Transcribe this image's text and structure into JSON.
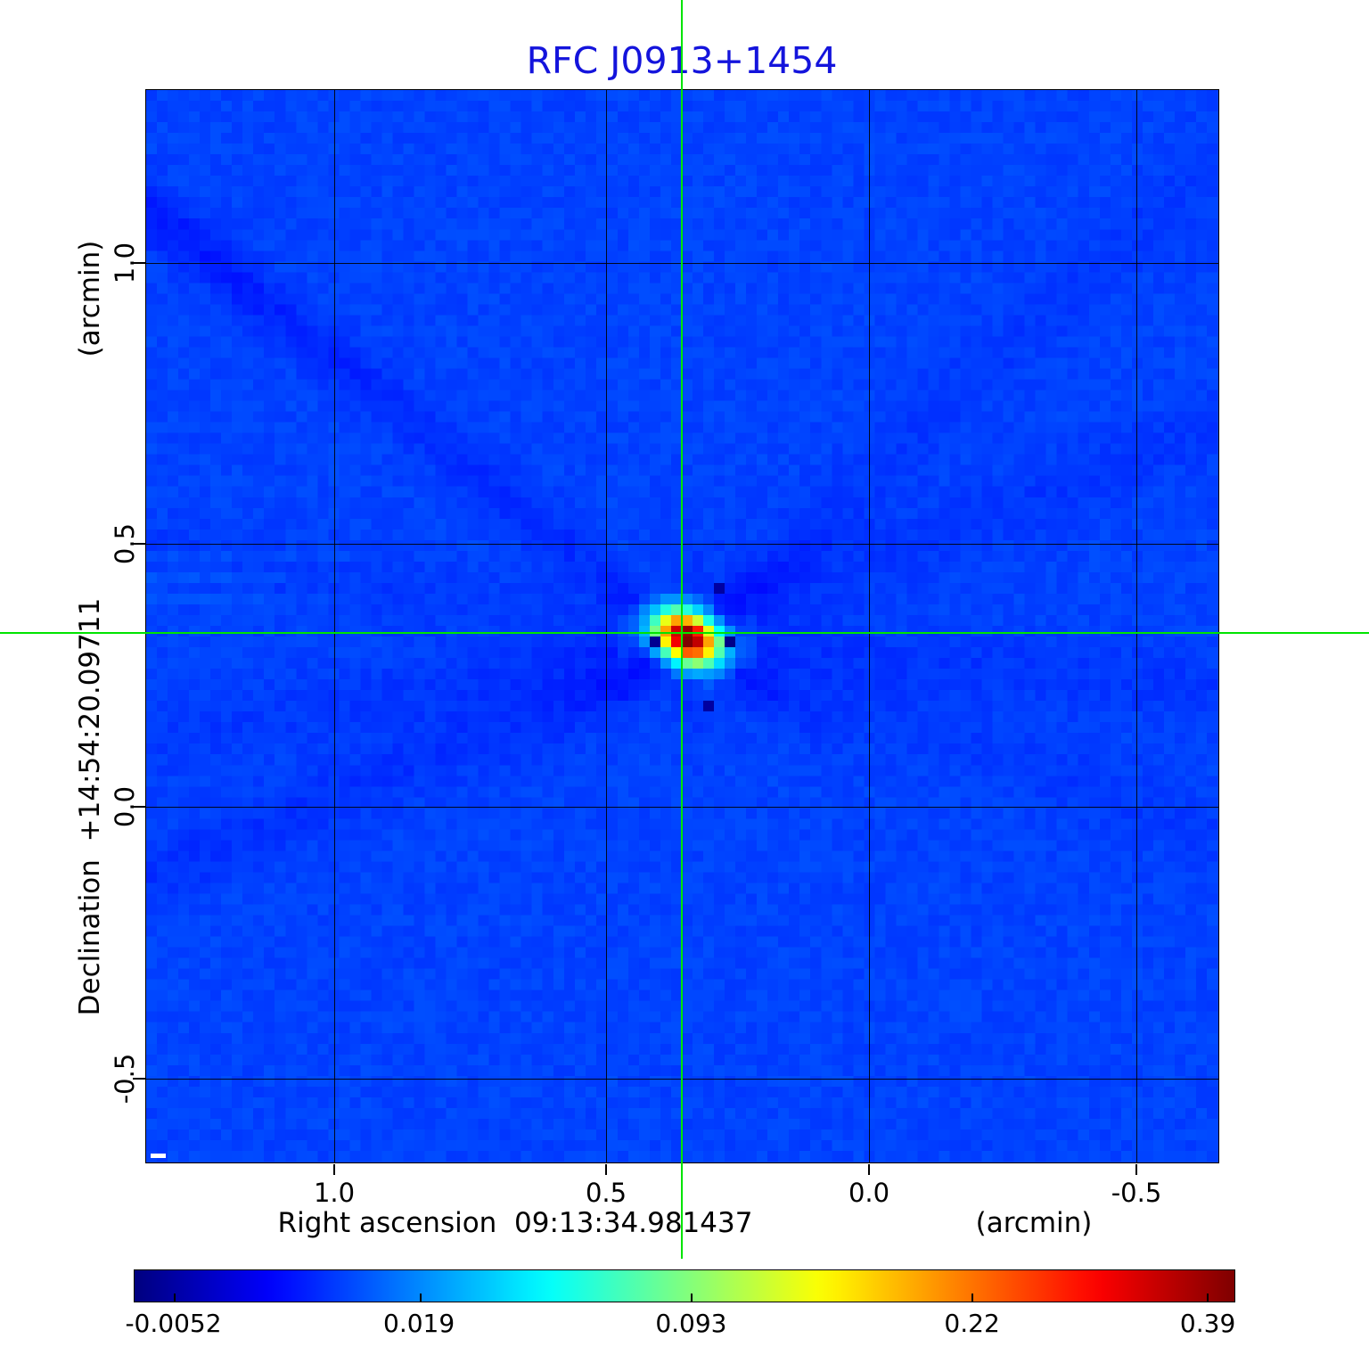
{
  "title": "RFC J0913+1454",
  "colors": {
    "title": "#1414dc",
    "crosshair": "#00e400",
    "grid": "#000000",
    "plot_background": "#0a46e8",
    "figure_background": "#ffffff"
  },
  "y_axis": {
    "label": "Declination  +14:54:20.09711",
    "unit": "(arcmin)",
    "ticks": [
      "1.0",
      "0.5",
      "0.0",
      "-0.5"
    ]
  },
  "x_axis": {
    "label": "Right ascension  09:13:34.981437",
    "unit": "(arcmin)",
    "ticks": [
      "1.0",
      "0.5",
      "0.0",
      "-0.5"
    ]
  },
  "colorbar": {
    "colormap": "jet",
    "tick_labels": [
      "-0.0052",
      "0.019",
      "0.093",
      "0.22",
      "0.39"
    ],
    "tick_positions": [
      0.036,
      0.259,
      0.506,
      0.761,
      0.975
    ],
    "anchor_colors": [
      "#000080",
      "#0000ff",
      "#00ffff",
      "#80ff80",
      "#ffff00",
      "#ff8000",
      "#ff0000",
      "#800000"
    ]
  },
  "chart_data": {
    "type": "heatmap",
    "title": "RFC J0913+1454",
    "xlabel": "Right ascension (arcmin)",
    "ylabel": "Declination (arcmin)",
    "x_ticks": [
      1.0,
      0.5,
      0.0,
      -0.5
    ],
    "y_ticks": [
      1.0,
      0.5,
      0.0,
      -0.5
    ],
    "x_range": [
      1.36,
      -0.66
    ],
    "y_range": [
      -0.66,
      1.32
    ],
    "grid": true,
    "colormap": "jet",
    "value_scale_ticks": [
      -0.0052,
      0.019,
      0.093,
      0.22,
      0.39
    ],
    "value_min": -0.0052,
    "value_max": 0.39,
    "background_level": 0.013,
    "peak_value": 0.39,
    "source_position": {
      "ra": "09:13:34.981437",
      "dec": "+14:54:20.09711",
      "offset_arcmin": [
        0.36,
        0.33
      ]
    },
    "crosshair_center_arcmin": [
      0.36,
      0.33
    ]
  }
}
